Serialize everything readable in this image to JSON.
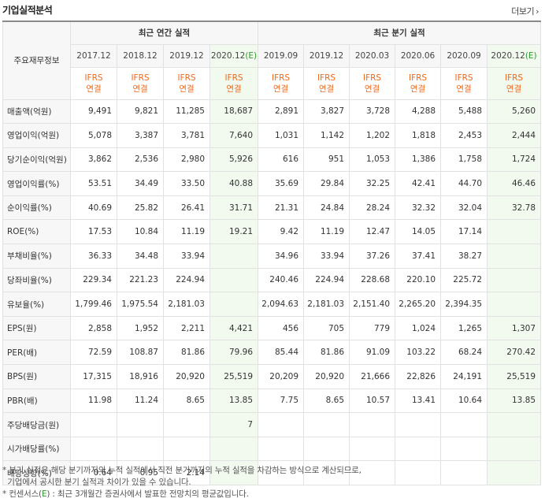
{
  "header": {
    "title": "기업실적분석",
    "more_label": "더보기"
  },
  "table": {
    "corner_label": "주요재무정보",
    "annual_group": "최근 연간 실적",
    "quarter_group": "최근 분기 실적",
    "annual_periods": [
      "2017.12",
      "2018.12",
      "2019.12",
      "2020.12"
    ],
    "quarter_periods": [
      "2019.09",
      "2019.12",
      "2020.03",
      "2020.06",
      "2020.09",
      "2020.12"
    ],
    "estimate_mark": "(E)",
    "ifrs_top": "IFRS",
    "ifrs_bottom": "연결",
    "rows": [
      {
        "label": "매출액(억원)",
        "values": [
          "9,491",
          "9,821",
          "11,285",
          "18,687",
          "2,891",
          "3,827",
          "3,728",
          "4,288",
          "5,488",
          "5,260"
        ]
      },
      {
        "label": "영업이익(억원)",
        "values": [
          "5,078",
          "3,387",
          "3,781",
          "7,640",
          "1,031",
          "1,142",
          "1,202",
          "1,818",
          "2,453",
          "2,444"
        ]
      },
      {
        "label": "당기순이익(억원)",
        "values": [
          "3,862",
          "2,536",
          "2,980",
          "5,926",
          "616",
          "951",
          "1,053",
          "1,386",
          "1,758",
          "1,724"
        ]
      },
      {
        "label": "영업이익률(%)",
        "values": [
          "53.51",
          "34.49",
          "33.50",
          "40.88",
          "35.69",
          "29.84",
          "32.25",
          "42.41",
          "44.70",
          "46.46"
        ]
      },
      {
        "label": "순이익률(%)",
        "values": [
          "40.69",
          "25.82",
          "26.41",
          "31.71",
          "21.31",
          "24.84",
          "28.24",
          "32.32",
          "32.04",
          "32.78"
        ]
      },
      {
        "label": "ROE(%)",
        "values": [
          "17.53",
          "10.84",
          "11.19",
          "19.21",
          "9.42",
          "11.19",
          "12.47",
          "14.05",
          "17.14",
          ""
        ]
      },
      {
        "label": "부채비율(%)",
        "values": [
          "36.33",
          "34.48",
          "33.94",
          "",
          "34.96",
          "33.94",
          "37.26",
          "37.41",
          "38.27",
          ""
        ]
      },
      {
        "label": "당좌비율(%)",
        "values": [
          "229.34",
          "221.23",
          "224.94",
          "",
          "240.46",
          "224.94",
          "228.68",
          "220.10",
          "225.72",
          ""
        ]
      },
      {
        "label": "유보율(%)",
        "values": [
          "1,799.46",
          "1,975.54",
          "2,181.03",
          "",
          "2,094.63",
          "2,181.03",
          "2,151.40",
          "2,265.20",
          "2,394.35",
          ""
        ]
      },
      {
        "label": "EPS(원)",
        "values": [
          "2,858",
          "1,952",
          "2,211",
          "4,421",
          "456",
          "705",
          "779",
          "1,024",
          "1,265",
          "1,307"
        ]
      },
      {
        "label": "PER(배)",
        "values": [
          "72.59",
          "108.87",
          "81.86",
          "79.96",
          "85.44",
          "81.86",
          "91.09",
          "103.22",
          "68.24",
          "270.42"
        ]
      },
      {
        "label": "BPS(원)",
        "values": [
          "17,315",
          "18,916",
          "20,920",
          "25,519",
          "20,209",
          "20,920",
          "21,666",
          "22,826",
          "24,191",
          "25,519"
        ]
      },
      {
        "label": "PBR(배)",
        "values": [
          "11.98",
          "11.24",
          "8.65",
          "13.85",
          "7.75",
          "8.65",
          "10.57",
          "13.41",
          "10.64",
          "13.85"
        ]
      },
      {
        "label": "주당배당금(원)",
        "values": [
          "",
          "",
          "",
          "7",
          "",
          "",
          "",
          "",
          "",
          ""
        ]
      },
      {
        "label": "시가배당률(%)",
        "values": [
          "",
          "",
          "",
          "",
          "",
          "",
          "",
          "",
          "",
          ""
        ]
      },
      {
        "label": "배당성향(%)",
        "values": [
          "0.64",
          "0.95",
          "2.14",
          "",
          "",
          "",
          "",
          "",
          "",
          ""
        ]
      }
    ]
  },
  "notes": {
    "line1": "* 분기 실적은 해당 분기까지의 누적 실적에서 직전 분기까지의 누적 실적을 차감하는 방식으로 계산되므로,",
    "line2": "  기업에서 공시한 분기 실적과 차이가 있을 수 있습니다.",
    "line3_prefix": "* 컨센서스(",
    "line3_e": "E",
    "line3_suffix": ") : 최근 3개월간 증권사에서 발표한 전망치의 평균값입니다."
  },
  "colors": {
    "ifrs": "#ee6a1c",
    "estimate": "#2e9b2e",
    "highlight": "#f2f9ef"
  }
}
